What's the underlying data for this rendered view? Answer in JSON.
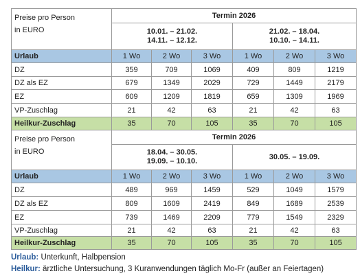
{
  "blocks": [
    {
      "label": [
        "Preise pro Person",
        "in EURO"
      ],
      "termin": "Termin 2026",
      "periods": [
        [
          "10.01. – 21.02.",
          "14.11. – 12.12."
        ],
        [
          "21.02. – 18.04.",
          "10.10. – 14.11."
        ]
      ],
      "header_row": {
        "label": "Urlaub",
        "durations": [
          "1 Wo",
          "2 Wo",
          "3 Wo",
          "1 Wo",
          "2 Wo",
          "3 Wo"
        ]
      },
      "rows": [
        {
          "label": "DZ",
          "values": [
            359,
            709,
            1069,
            409,
            809,
            1219
          ]
        },
        {
          "label": "DZ als EZ",
          "values": [
            679,
            1349,
            2029,
            729,
            1449,
            2179
          ]
        },
        {
          "label": "EZ",
          "values": [
            609,
            1209,
            1819,
            659,
            1309,
            1969
          ]
        },
        {
          "label": "VP-Zuschlag",
          "values": [
            21,
            42,
            63,
            21,
            42,
            63
          ]
        }
      ],
      "heilkur_row": {
        "label": "Heilkur-Zuschlag",
        "values": [
          35,
          70,
          105,
          35,
          70,
          105
        ]
      }
    },
    {
      "label": [
        "Preise pro Person",
        "in EURO"
      ],
      "termin": "Termin 2026",
      "periods": [
        [
          "18.04. – 30.05.",
          "19.09. – 10.10."
        ],
        [
          "30.05. – 19.09."
        ]
      ],
      "header_row": {
        "label": "Urlaub",
        "durations": [
          "1 Wo",
          "2 Wo",
          "3 Wo",
          "1 Wo",
          "2 Wo",
          "3 Wo"
        ]
      },
      "rows": [
        {
          "label": "DZ",
          "values": [
            489,
            969,
            1459,
            529,
            1049,
            1579
          ]
        },
        {
          "label": "DZ als EZ",
          "values": [
            809,
            1609,
            2419,
            849,
            1689,
            2539
          ]
        },
        {
          "label": "EZ",
          "values": [
            739,
            1469,
            2209,
            779,
            1549,
            2329
          ]
        },
        {
          "label": "VP-Zuschlag",
          "values": [
            21,
            42,
            63,
            21,
            42,
            63
          ]
        }
      ],
      "heilkur_row": {
        "label": "Heilkur-Zuschlag",
        "values": [
          35,
          70,
          105,
          35,
          70,
          105
        ]
      }
    }
  ],
  "legend": [
    {
      "term": "Urlaub:",
      "text": "Unterkunft, Halbpension"
    },
    {
      "term": "Heilkur:",
      "text": "ärztliche Untersuchung, 3 Kuranwendungen täglich Mo-Fr (außer an Feiertagen)"
    }
  ]
}
